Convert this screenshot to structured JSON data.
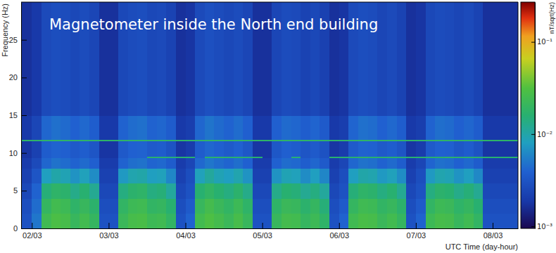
{
  "chart_data": {
    "type": "heatmap",
    "title": "Magnetometer inside the North end building",
    "x_label": "UTC Time (day-hour)",
    "y_label": "Frequency (Hz)",
    "xlim": [
      1.86,
      8.33
    ],
    "xticks": [
      {
        "value": 2,
        "label": "02/03"
      },
      {
        "value": 3,
        "label": "03/03"
      },
      {
        "value": 4,
        "label": "04/03"
      },
      {
        "value": 5,
        "label": "05/03"
      },
      {
        "value": 6,
        "label": "06/03"
      },
      {
        "value": 7,
        "label": "07/03"
      },
      {
        "value": 8,
        "label": "08/03"
      }
    ],
    "ylim": [
      0,
      30
    ],
    "yticks": [
      0,
      5,
      10,
      15,
      20,
      25
    ],
    "x_edges": [
      1.86,
      2,
      2.125,
      2.25,
      2.375,
      2.5,
      2.625,
      2.75,
      2.875,
      3,
      3.125,
      3.25,
      3.375,
      3.5,
      3.625,
      3.75,
      3.875,
      4,
      4.125,
      4.25,
      4.375,
      4.5,
      4.625,
      4.75,
      4.875,
      5,
      5.125,
      5.25,
      5.375,
      5.5,
      5.625,
      5.75,
      5.875,
      6,
      6.125,
      6.25,
      6.375,
      6.5,
      6.625,
      6.75,
      6.875,
      7,
      7.125,
      7.25,
      7.375,
      7.5,
      7.625,
      7.75,
      7.875,
      8,
      8.33
    ],
    "y_edges": [
      0,
      2,
      4,
      6,
      8,
      9.4,
      9.6,
      11.6,
      11.8,
      15,
      30
    ],
    "cells": [
      [
        0.003,
        0.005,
        0.024,
        0.029,
        0.027,
        0.021,
        0.025,
        0.02,
        0.003,
        0.003,
        0.022,
        0.027,
        0.028,
        0.023,
        0.024,
        0.019,
        0.003,
        0.004,
        0.025,
        0.03,
        0.026,
        0.022,
        0.027,
        0.021,
        0.003,
        0.003,
        0.021,
        0.026,
        0.025,
        0.02,
        0.023,
        0.018,
        0.003,
        0.004,
        0.024,
        0.028,
        0.027,
        0.022,
        0.025,
        0.02,
        0.003,
        0.004,
        0.023,
        0.027,
        0.026,
        0.021,
        0.024,
        0.019,
        0.003,
        0.003
      ],
      [
        0.0028,
        0.0045,
        0.02,
        0.025,
        0.023,
        0.018,
        0.021,
        0.017,
        0.0028,
        0.0028,
        0.019,
        0.023,
        0.024,
        0.019,
        0.02,
        0.016,
        0.0028,
        0.0035,
        0.021,
        0.026,
        0.022,
        0.019,
        0.023,
        0.018,
        0.0028,
        0.0028,
        0.018,
        0.022,
        0.021,
        0.017,
        0.02,
        0.015,
        0.0028,
        0.0035,
        0.02,
        0.024,
        0.023,
        0.019,
        0.021,
        0.017,
        0.0028,
        0.0035,
        0.019,
        0.023,
        0.022,
        0.018,
        0.02,
        0.016,
        0.0028,
        0.0028
      ],
      [
        0.0025,
        0.004,
        0.015,
        0.018,
        0.017,
        0.013,
        0.016,
        0.012,
        0.0025,
        0.0025,
        0.014,
        0.017,
        0.018,
        0.014,
        0.015,
        0.011,
        0.0025,
        0.003,
        0.016,
        0.019,
        0.016,
        0.014,
        0.017,
        0.013,
        0.0025,
        0.0025,
        0.013,
        0.016,
        0.015,
        0.012,
        0.014,
        0.011,
        0.0025,
        0.003,
        0.015,
        0.018,
        0.017,
        0.014,
        0.016,
        0.012,
        0.0025,
        0.003,
        0.014,
        0.017,
        0.016,
        0.013,
        0.015,
        0.012,
        0.0025,
        0.0025
      ],
      [
        0.0022,
        0.0032,
        0.008,
        0.01,
        0.009,
        0.007,
        0.0085,
        0.0065,
        0.0022,
        0.0022,
        0.0075,
        0.0095,
        0.01,
        0.008,
        0.0085,
        0.006,
        0.0022,
        0.0028,
        0.0085,
        0.011,
        0.009,
        0.008,
        0.0095,
        0.007,
        0.0022,
        0.0022,
        0.007,
        0.009,
        0.0085,
        0.0065,
        0.008,
        0.006,
        0.0022,
        0.0028,
        0.008,
        0.01,
        0.0095,
        0.0075,
        0.0085,
        0.0065,
        0.0022,
        0.0028,
        0.0075,
        0.0095,
        0.009,
        0.007,
        0.008,
        0.0062,
        0.0022,
        0.0022
      ],
      [
        0.002,
        0.0026,
        0.0042,
        0.0048,
        0.0045,
        0.004,
        0.0044,
        0.0038,
        0.002,
        0.002,
        0.004,
        0.0046,
        0.0048,
        0.0041,
        0.0043,
        0.0036,
        0.002,
        0.0024,
        0.0043,
        0.005,
        0.0045,
        0.0041,
        0.0046,
        0.0039,
        0.002,
        0.002,
        0.0039,
        0.0045,
        0.0043,
        0.0037,
        0.0042,
        0.0035,
        0.002,
        0.0024,
        0.0042,
        0.0048,
        0.0046,
        0.004,
        0.0044,
        0.0037,
        0.002,
        0.0024,
        0.0041,
        0.0047,
        0.0045,
        0.0039,
        0.0043,
        0.0036,
        0.002,
        0.002
      ],
      [
        0.0018,
        0.0022,
        0.0036,
        0.004,
        0.0038,
        0.0034,
        0.0037,
        0.0032,
        0.0018,
        0.0018,
        0.0034,
        0.0039,
        0.004,
        0.016,
        0.016,
        0.015,
        0.016,
        0.016,
        0.0036,
        0.016,
        0.017,
        0.016,
        0.016,
        0.015,
        0.016,
        0.0018,
        0.0033,
        0.0038,
        0.015,
        0.0032,
        0.0035,
        0.003,
        0.016,
        0.016,
        0.016,
        0.017,
        0.016,
        0.016,
        0.016,
        0.015,
        0.016,
        0.016,
        0.016,
        0.016,
        0.017,
        0.016,
        0.016,
        0.016,
        0.016,
        0.016
      ],
      [
        0.0018,
        0.0022,
        0.0036,
        0.004,
        0.0038,
        0.0034,
        0.0037,
        0.0032,
        0.0018,
        0.0018,
        0.0034,
        0.0039,
        0.004,
        0.0035,
        0.0036,
        0.0031,
        0.0018,
        0.002,
        0.0036,
        0.0042,
        0.0038,
        0.0035,
        0.0039,
        0.0033,
        0.0018,
        0.0018,
        0.0033,
        0.0038,
        0.0036,
        0.0032,
        0.0035,
        0.003,
        0.0018,
        0.002,
        0.0035,
        0.004,
        0.0039,
        0.0034,
        0.0037,
        0.0032,
        0.0018,
        0.002,
        0.0035,
        0.0039,
        0.0038,
        0.0033,
        0.0036,
        0.0031,
        0.0018,
        0.0018
      ],
      [
        0.018,
        0.018,
        0.018,
        0.018,
        0.018,
        0.018,
        0.018,
        0.018,
        0.018,
        0.018,
        0.018,
        0.018,
        0.018,
        0.018,
        0.018,
        0.018,
        0.018,
        0.018,
        0.018,
        0.018,
        0.018,
        0.018,
        0.018,
        0.018,
        0.018,
        0.018,
        0.018,
        0.018,
        0.018,
        0.018,
        0.018,
        0.018,
        0.018,
        0.018,
        0.018,
        0.018,
        0.018,
        0.018,
        0.018,
        0.018,
        0.018,
        0.018,
        0.018,
        0.018,
        0.018,
        0.018,
        0.018,
        0.018,
        0.018,
        0.018
      ],
      [
        0.0019,
        0.0024,
        0.0042,
        0.0047,
        0.0044,
        0.0039,
        0.0043,
        0.0037,
        0.0019,
        0.0019,
        0.004,
        0.0045,
        0.0047,
        0.004,
        0.0042,
        0.0036,
        0.0019,
        0.0021,
        0.0042,
        0.0049,
        0.0044,
        0.004,
        0.0045,
        0.0038,
        0.0019,
        0.0019,
        0.0038,
        0.0044,
        0.0042,
        0.0037,
        0.0041,
        0.0035,
        0.0019,
        0.0021,
        0.0041,
        0.0047,
        0.0045,
        0.0039,
        0.0043,
        0.0037,
        0.0019,
        0.0021,
        0.004,
        0.0046,
        0.0044,
        0.0038,
        0.0042,
        0.0036,
        0.0019,
        0.0019
      ],
      [
        0.0017,
        0.0019,
        0.0026,
        0.0028,
        0.0027,
        0.0025,
        0.0027,
        0.0024,
        0.0017,
        0.0017,
        0.0025,
        0.0027,
        0.0028,
        0.0025,
        0.0026,
        0.0023,
        0.0017,
        0.0018,
        0.0026,
        0.0029,
        0.0027,
        0.0025,
        0.0027,
        0.0024,
        0.0017,
        0.0017,
        0.0024,
        0.0027,
        0.0026,
        0.0023,
        0.0025,
        0.0022,
        0.0017,
        0.0018,
        0.0026,
        0.0028,
        0.0027,
        0.0024,
        0.0026,
        0.0023,
        0.0017,
        0.0018,
        0.0025,
        0.0027,
        0.0026,
        0.0024,
        0.0026,
        0.0023,
        0.0017,
        0.0017
      ]
    ],
    "colorbar": {
      "title": "nT/sqrt(Hz)",
      "log": true,
      "range": [
        0.00095,
        0.27
      ],
      "ticks": [
        {
          "value": 0.001,
          "label": "10⁻³"
        },
        {
          "value": 0.01,
          "label": "10⁻²"
        },
        {
          "value": 0.1,
          "label": "10⁻¹"
        }
      ]
    }
  }
}
